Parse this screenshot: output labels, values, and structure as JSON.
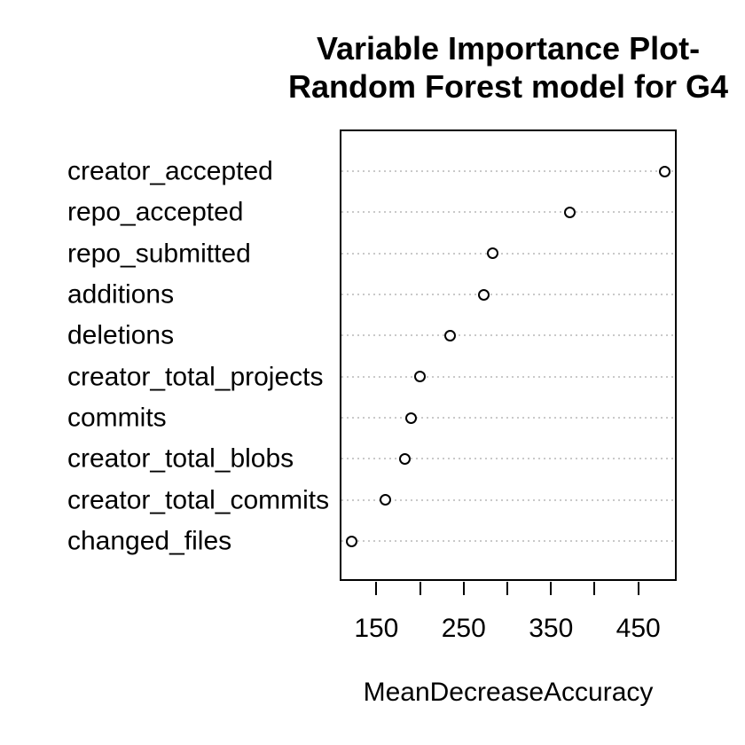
{
  "page": {
    "background": "#ffffff"
  },
  "chart_data": {
    "type": "scatter",
    "subtype": "dotchart",
    "title_lines": [
      "Variable Importance Plot-",
      "Random Forest model for G4"
    ],
    "categories": [
      "creator_accepted",
      "repo_accepted",
      "repo_submitted",
      "additions",
      "deletions",
      "creator_total_projects",
      "commits",
      "creator_total_blobs",
      "creator_total_commits",
      "changed_files"
    ],
    "values": [
      480,
      372,
      283,
      273,
      234,
      200,
      190,
      183,
      160,
      122
    ],
    "xlabel": "MeanDecreaseAccuracy",
    "ylabel": "",
    "xlim": [
      108,
      494
    ],
    "xticks": [
      150,
      200,
      250,
      300,
      350,
      400,
      450
    ],
    "xtick_labels_shown": [
      150,
      250,
      350,
      450
    ],
    "grid": "horizontal-dotted",
    "legend": "none",
    "colors": {
      "text": "#000000",
      "point_stroke": "#000000",
      "point_fill": "#ffffff",
      "grid": "#c9c9c9",
      "box_border": "#000000",
      "background": "#ffffff"
    }
  }
}
